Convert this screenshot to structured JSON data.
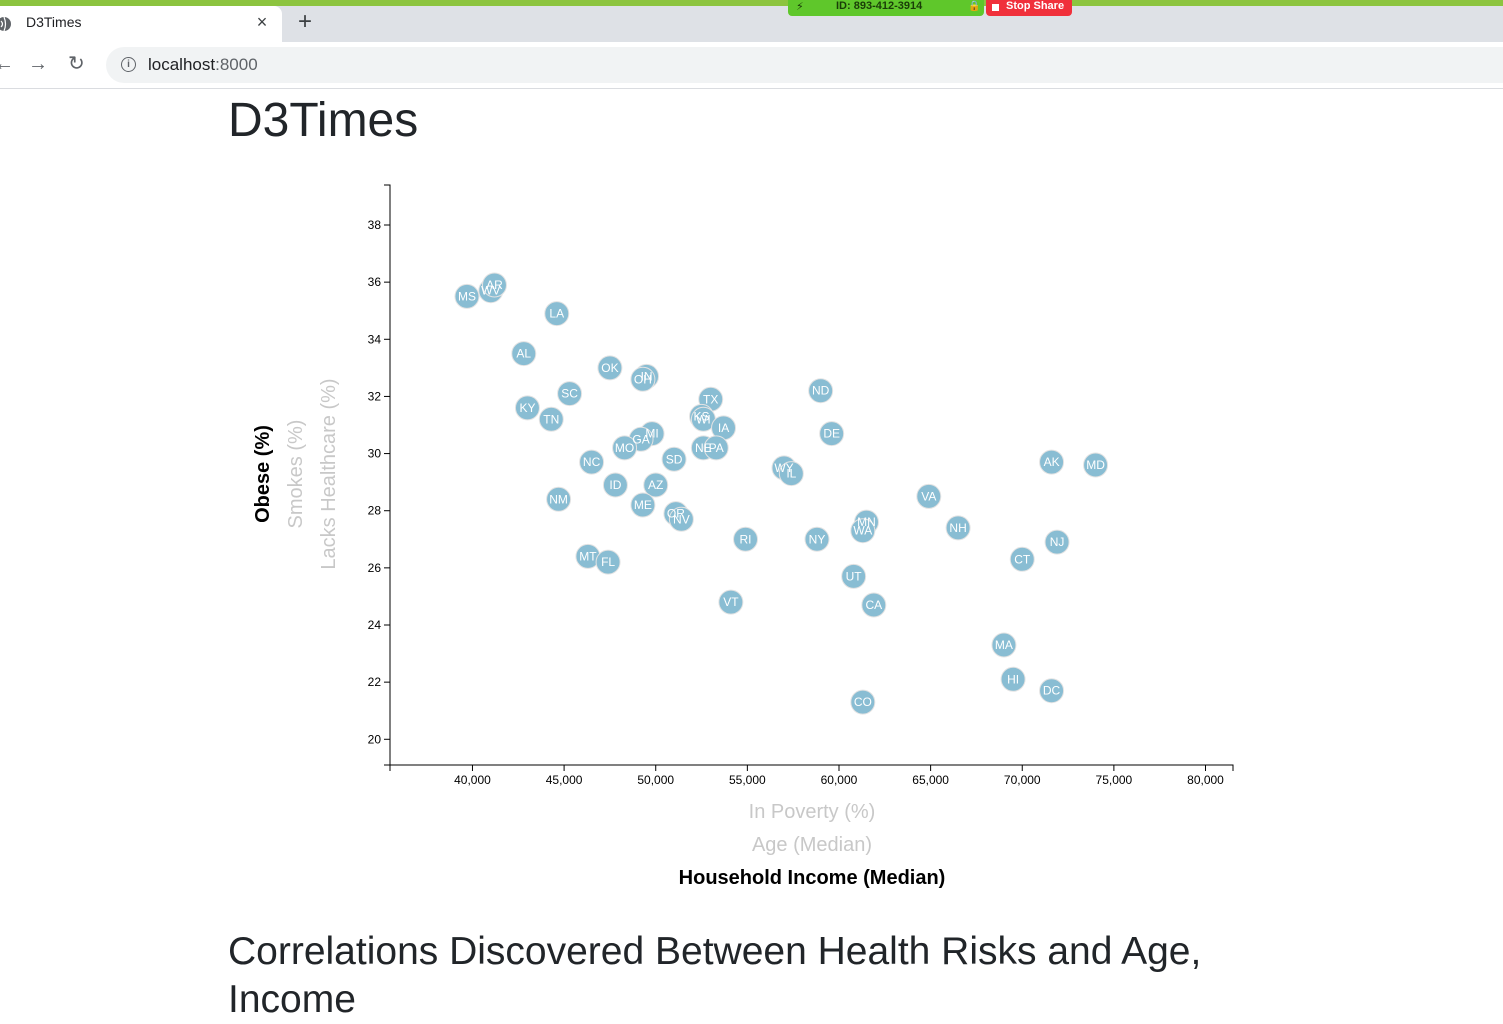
{
  "browser": {
    "tab_title": "D3Times",
    "tab_close": "×",
    "new_tab": "+",
    "url_host": "localhost",
    "url_port": ":8000",
    "share_id": "ID: 893-412-3914",
    "stop_share": "Stop Share",
    "back_icon": "←",
    "forward_icon": "→",
    "reload_icon": "↻",
    "info_icon": "i"
  },
  "page": {
    "title": "D3Times",
    "section_heading": "Correlations Discovered Between Health Risks and Age, Income"
  },
  "chart_data": {
    "type": "scatter",
    "x_axis_labels": [
      {
        "text": "In Poverty (%)",
        "active": false
      },
      {
        "text": "Age (Median)",
        "active": false
      },
      {
        "text": "Household Income (Median)",
        "active": true
      }
    ],
    "y_axis_labels": [
      {
        "text": "Obese (%)",
        "active": true
      },
      {
        "text": "Smokes (%)",
        "active": false
      },
      {
        "text": "Lacks Healthcare (%)",
        "active": false
      }
    ],
    "xlim": [
      35500,
      81500
    ],
    "ylim": [
      19.1,
      39.4
    ],
    "x_ticks": [
      40000,
      45000,
      50000,
      55000,
      60000,
      65000,
      70000,
      75000,
      80000
    ],
    "x_tick_labels": [
      "40,000",
      "45,000",
      "50,000",
      "55,000",
      "60,000",
      "65,000",
      "70,000",
      "75,000",
      "80,000"
    ],
    "y_ticks": [
      20,
      22,
      24,
      26,
      28,
      30,
      32,
      34,
      36,
      38
    ],
    "y_tick_labels": [
      "20",
      "22",
      "24",
      "26",
      "28",
      "30",
      "32",
      "34",
      "36",
      "38"
    ],
    "marker_color": "#89bdd3",
    "points": [
      {
        "abbr": "MS",
        "x": 39700,
        "y": 35.5
      },
      {
        "abbr": "WV",
        "x": 41000,
        "y": 35.7
      },
      {
        "abbr": "AR",
        "x": 41200,
        "y": 35.9
      },
      {
        "abbr": "LA",
        "x": 44600,
        "y": 34.9
      },
      {
        "abbr": "AL",
        "x": 42800,
        "y": 33.5
      },
      {
        "abbr": "OK",
        "x": 47500,
        "y": 33.0
      },
      {
        "abbr": "IN",
        "x": 49500,
        "y": 32.7
      },
      {
        "abbr": "OH",
        "x": 49300,
        "y": 32.6
      },
      {
        "abbr": "SC",
        "x": 45300,
        "y": 32.1
      },
      {
        "abbr": "KY",
        "x": 43000,
        "y": 31.6
      },
      {
        "abbr": "TN",
        "x": 44300,
        "y": 31.2
      },
      {
        "abbr": "TX",
        "x": 53000,
        "y": 31.9
      },
      {
        "abbr": "KS",
        "x": 52500,
        "y": 31.3
      },
      {
        "abbr": "WI",
        "x": 52600,
        "y": 31.2
      },
      {
        "abbr": "IA",
        "x": 53700,
        "y": 30.9
      },
      {
        "abbr": "ND",
        "x": 59000,
        "y": 32.2
      },
      {
        "abbr": "DE",
        "x": 59600,
        "y": 30.7
      },
      {
        "abbr": "MI",
        "x": 49800,
        "y": 30.7
      },
      {
        "abbr": "GA",
        "x": 49200,
        "y": 30.5
      },
      {
        "abbr": "MO",
        "x": 48300,
        "y": 30.2
      },
      {
        "abbr": "NE",
        "x": 52600,
        "y": 30.2
      },
      {
        "abbr": "PA",
        "x": 53300,
        "y": 30.2
      },
      {
        "abbr": "NC",
        "x": 46500,
        "y": 29.7
      },
      {
        "abbr": "SD",
        "x": 51000,
        "y": 29.8
      },
      {
        "abbr": "WY",
        "x": 57000,
        "y": 29.5
      },
      {
        "abbr": "IL",
        "x": 57400,
        "y": 29.3
      },
      {
        "abbr": "AK",
        "x": 71600,
        "y": 29.7
      },
      {
        "abbr": "MD",
        "x": 74000,
        "y": 29.6
      },
      {
        "abbr": "ID",
        "x": 47800,
        "y": 28.9
      },
      {
        "abbr": "AZ",
        "x": 50000,
        "y": 28.9
      },
      {
        "abbr": "NM",
        "x": 44700,
        "y": 28.4
      },
      {
        "abbr": "VA",
        "x": 64900,
        "y": 28.5
      },
      {
        "abbr": "ME",
        "x": 49300,
        "y": 28.2
      },
      {
        "abbr": "OR",
        "x": 51100,
        "y": 27.9
      },
      {
        "abbr": "NV",
        "x": 51400,
        "y": 27.7
      },
      {
        "abbr": "MN",
        "x": 61500,
        "y": 27.6
      },
      {
        "abbr": "WA",
        "x": 61300,
        "y": 27.3
      },
      {
        "abbr": "NH",
        "x": 66500,
        "y": 27.4
      },
      {
        "abbr": "RI",
        "x": 54900,
        "y": 27.0
      },
      {
        "abbr": "NY",
        "x": 58800,
        "y": 27.0
      },
      {
        "abbr": "NJ",
        "x": 71900,
        "y": 26.9
      },
      {
        "abbr": "MT",
        "x": 46300,
        "y": 26.4
      },
      {
        "abbr": "FL",
        "x": 47400,
        "y": 26.2
      },
      {
        "abbr": "CT",
        "x": 70000,
        "y": 26.3
      },
      {
        "abbr": "UT",
        "x": 60800,
        "y": 25.7
      },
      {
        "abbr": "CA",
        "x": 61900,
        "y": 24.7
      },
      {
        "abbr": "VT",
        "x": 54100,
        "y": 24.8
      },
      {
        "abbr": "MA",
        "x": 69000,
        "y": 23.3
      },
      {
        "abbr": "HI",
        "x": 69500,
        "y": 22.1
      },
      {
        "abbr": "DC",
        "x": 71600,
        "y": 21.7
      },
      {
        "abbr": "CO",
        "x": 61300,
        "y": 21.3
      }
    ]
  }
}
